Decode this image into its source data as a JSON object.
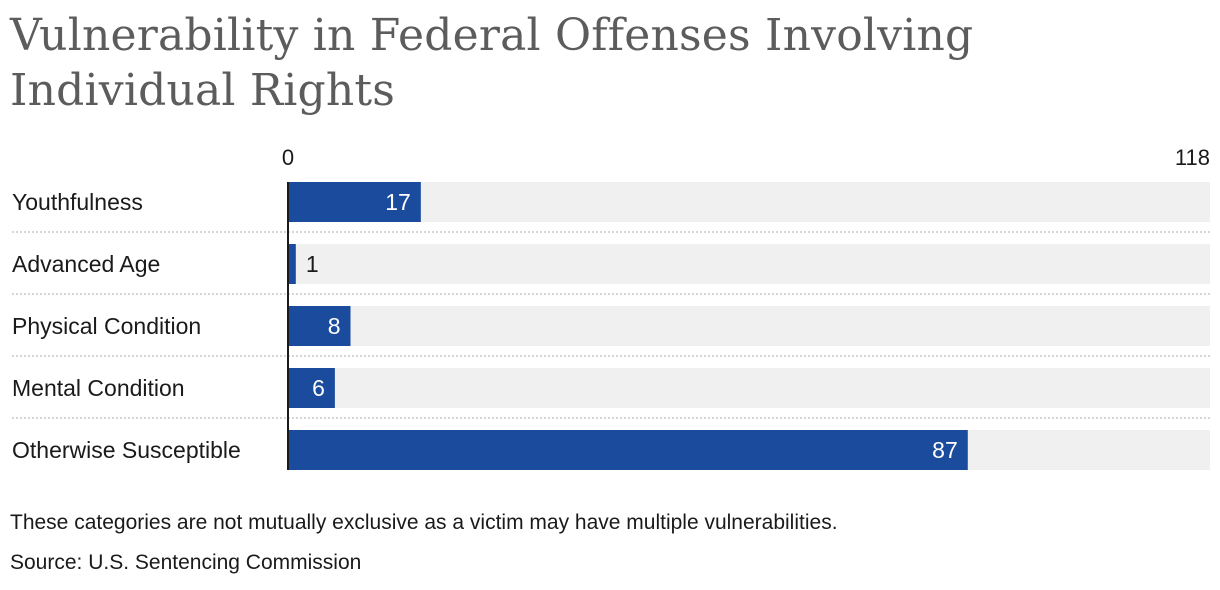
{
  "header": {
    "title": "Vulnerability in Federal Offenses Involving Individual Rights"
  },
  "chart_data": {
    "type": "bar",
    "orientation": "horizontal",
    "categories": [
      "Youthfulness",
      "Advanced Age",
      "Physical Condition",
      "Mental Condition",
      "Otherwise Susceptible"
    ],
    "values": [
      17,
      1,
      8,
      6,
      87
    ],
    "xlim": [
      0,
      118
    ],
    "axis_labels": [
      "0",
      "118"
    ],
    "data_labels": [
      "17",
      "1",
      "8",
      "6",
      "87"
    ],
    "colors": {
      "bar": "#1a4b9c",
      "track": "#f0f0f0",
      "label_inside": "#ffffff",
      "label_outside": "#1a1a1a",
      "divider": "#c8c8c8",
      "axis": "#1a1a1a"
    }
  },
  "footer": {
    "note": "These categories are not mutually exclusive as a victim may have multiple vulnerabilities.",
    "source": "Source: U.S. Sentencing Commission"
  }
}
